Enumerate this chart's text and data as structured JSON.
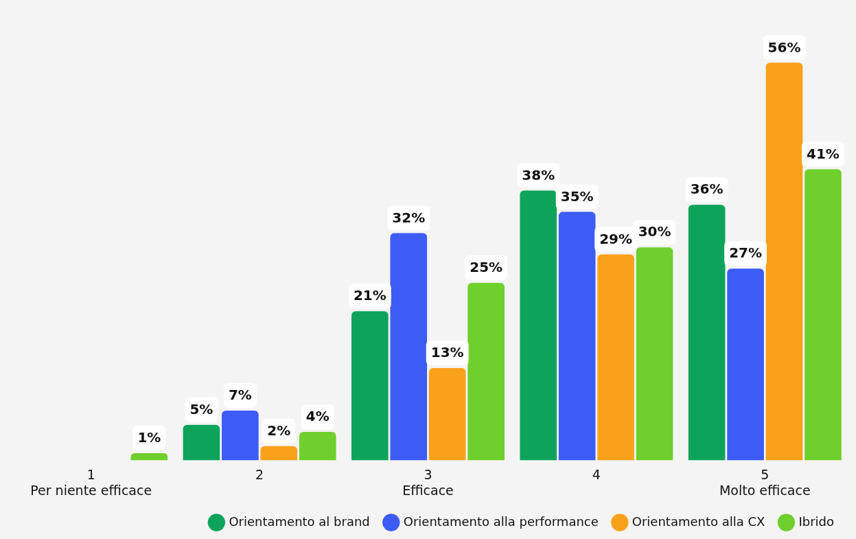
{
  "chart_data": {
    "type": "bar",
    "categories": [
      "1\nPer niente efficace",
      "2",
      "3\nEfficace",
      "4",
      "5\nMolto efficace"
    ],
    "series": [
      {
        "name": "Orientamento al brand",
        "color": "#0ea35a",
        "values": [
          null,
          5,
          21,
          38,
          36
        ],
        "value_labels": [
          null,
          "5%",
          "21%",
          "38%",
          "36%"
        ]
      },
      {
        "name": "Orientamento alla performance",
        "color": "#3d5cf5",
        "values": [
          null,
          7,
          32,
          35,
          27
        ],
        "value_labels": [
          null,
          "7%",
          "32%",
          "35%",
          "27%"
        ]
      },
      {
        "name": "Orientamento alla CX",
        "color": "#f9a11b",
        "values": [
          null,
          2,
          13,
          29,
          56
        ],
        "value_labels": [
          null,
          "2%",
          "13%",
          "29%",
          "56%"
        ]
      },
      {
        "name": "Ibrido",
        "color": "#6fcf2c",
        "values": [
          1,
          4,
          25,
          30,
          41
        ],
        "value_labels": [
          "1%",
          "4%",
          "25%",
          "30%",
          "41%"
        ]
      }
    ],
    "grid": false,
    "legend": "bottom right",
    "tick_labels": "x"
  }
}
